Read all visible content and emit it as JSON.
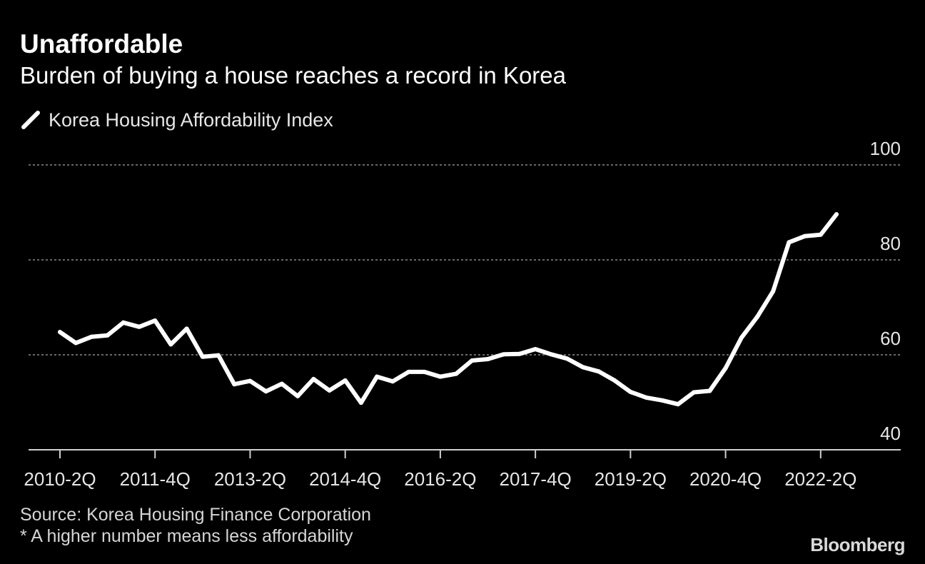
{
  "header": {
    "title": "Unaffordable",
    "subtitle": "Burden of buying a house reaches a record in Korea"
  },
  "footer": {
    "source": "Source: Korea Housing Finance Corporation",
    "note": "* A higher number means less affordability",
    "brand": "Bloomberg"
  },
  "colors": {
    "background": "#000000",
    "line": "#ffffff",
    "grid": "#8a8a8a",
    "text": "#ffffff",
    "muted_text": "#d6d6d6"
  },
  "chart_data": {
    "type": "line",
    "title": "Unaffordable",
    "subtitle": "Burden of buying a house reaches a record in Korea",
    "xlabel": "",
    "ylabel": "",
    "ylim": [
      40,
      100
    ],
    "y_ticks": [
      40,
      60,
      80,
      100
    ],
    "y_axis_side": "right",
    "grid": "horizontal-dotted",
    "legend_position": "top-left",
    "x_ticks": [
      "2010-2Q",
      "2011-4Q",
      "2013-2Q",
      "2014-4Q",
      "2016-2Q",
      "2017-4Q",
      "2019-2Q",
      "2020-4Q",
      "2022-2Q"
    ],
    "x": [
      "2010-2Q",
      "2010-3Q",
      "2010-4Q",
      "2011-1Q",
      "2011-2Q",
      "2011-3Q",
      "2011-4Q",
      "2012-1Q",
      "2012-2Q",
      "2012-3Q",
      "2012-4Q",
      "2013-1Q",
      "2013-2Q",
      "2013-3Q",
      "2013-4Q",
      "2014-1Q",
      "2014-2Q",
      "2014-3Q",
      "2014-4Q",
      "2015-1Q",
      "2015-2Q",
      "2015-3Q",
      "2015-4Q",
      "2016-1Q",
      "2016-2Q",
      "2016-3Q",
      "2016-4Q",
      "2017-1Q",
      "2017-2Q",
      "2017-3Q",
      "2017-4Q",
      "2018-1Q",
      "2018-2Q",
      "2018-3Q",
      "2018-4Q",
      "2019-1Q",
      "2019-2Q",
      "2019-3Q",
      "2019-4Q",
      "2020-1Q",
      "2020-2Q",
      "2020-3Q",
      "2020-4Q",
      "2021-1Q",
      "2021-2Q",
      "2021-3Q",
      "2021-4Q",
      "2022-1Q",
      "2022-2Q",
      "2022-3Q"
    ],
    "series": [
      {
        "name": "Korea Housing Affordability Index",
        "values": [
          64.8,
          62.5,
          63.8,
          64.1,
          66.8,
          65.9,
          67.2,
          62.2,
          65.5,
          59.6,
          59.9,
          53.8,
          54.5,
          52.3,
          53.9,
          51.3,
          54.9,
          52.5,
          54.6,
          49.9,
          55.4,
          54.4,
          56.4,
          56.4,
          55.4,
          56.0,
          58.8,
          59.1,
          60.1,
          60.2,
          61.2,
          60.1,
          59.2,
          57.4,
          56.5,
          54.6,
          52.2,
          51.0,
          50.4,
          49.6,
          52.1,
          52.4,
          57.2,
          63.6,
          68.0,
          73.4,
          83.7,
          85.0,
          85.3,
          89.6
        ]
      }
    ]
  }
}
